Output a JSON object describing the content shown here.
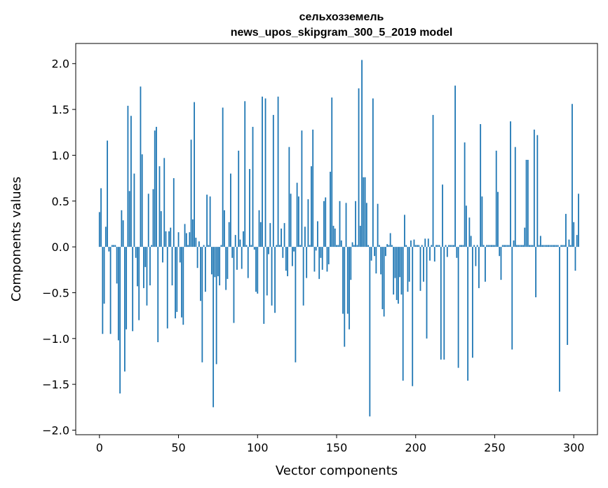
{
  "chart_data": {
    "type": "bar",
    "title": "сельхозземель",
    "subtitle": "news_upos_skipgram_300_5_2019 model",
    "xlabel": "Vector components",
    "ylabel": "Components values",
    "xlim": [
      -15,
      315
    ],
    "ylim": [
      -2.05,
      2.22
    ],
    "xticks": [
      0,
      50,
      100,
      150,
      200,
      250,
      300
    ],
    "xtick_labels": [
      "0",
      "50",
      "100",
      "150",
      "200",
      "250",
      "300"
    ],
    "yticks": [
      -2.0,
      -1.5,
      -1.0,
      -0.5,
      0.0,
      0.5,
      1.0,
      1.5,
      2.0
    ],
    "ytick_labels": [
      "−2.0",
      "−1.5",
      "−1.0",
      "−0.5",
      "0.0",
      "0.5",
      "1.0",
      "1.5",
      "2.0"
    ],
    "grid": false,
    "bar_color": "#1f77b4",
    "series": [
      {
        "values": [
          0.38,
          0.64,
          -0.95,
          -0.62,
          0.22,
          1.16,
          -0.05,
          -0.95,
          0.02,
          0.02,
          0.02,
          -0.4,
          -1.02,
          -1.6,
          0.4,
          0.29,
          -1.36,
          -0.9,
          1.54,
          0.61,
          1.43,
          -0.92,
          0.8,
          -0.12,
          -0.43,
          -0.8,
          1.75,
          1.01,
          -0.45,
          -0.22,
          -0.64,
          0.58,
          -0.42,
          0.02,
          0.63,
          1.27,
          1.31,
          -1.04,
          0.88,
          0.39,
          -0.17,
          0.97,
          0.17,
          -0.89,
          0.17,
          0.21,
          -0.42,
          0.75,
          -0.78,
          -0.71,
          0.16,
          -0.17,
          -0.77,
          -0.85,
          0.25,
          0.15,
          0.02,
          0.16,
          1.17,
          0.3,
          1.58,
          0.1,
          -0.23,
          0.06,
          -0.59,
          -1.26,
          0.02,
          -0.49,
          0.57,
          0.02,
          0.55,
          -0.3,
          -1.75,
          -0.33,
          -1.28,
          -0.32,
          -0.42,
          0.02,
          1.52,
          0.4,
          -0.47,
          -0.35,
          0.27,
          0.8,
          -0.12,
          -0.83,
          0.13,
          -0.25,
          1.05,
          0.08,
          -0.24,
          0.17,
          1.59,
          0.02,
          -0.34,
          0.85,
          0.02,
          1.31,
          -0.03,
          -0.49,
          -0.51,
          0.4,
          0.27,
          1.64,
          -0.84,
          1.62,
          -0.53,
          -0.08,
          0.26,
          -0.64,
          1.44,
          -0.72,
          0.02,
          1.64,
          0.02,
          0.2,
          -0.12,
          0.26,
          -0.26,
          -0.32,
          1.09,
          0.58,
          -0.21,
          -0.05,
          -1.26,
          0.7,
          0.55,
          0.02,
          1.27,
          -0.64,
          0.22,
          -0.34,
          0.52,
          0.02,
          0.88,
          1.28,
          -0.27,
          -0.04,
          0.28,
          -0.35,
          -0.12,
          -0.25,
          0.5,
          0.54,
          -0.27,
          -0.19,
          0.82,
          1.63,
          0.23,
          0.2,
          0.02,
          0.02,
          0.5,
          0.07,
          -0.73,
          -1.09,
          0.48,
          -0.73,
          -0.9,
          -0.36,
          0.05,
          0.02,
          0.5,
          0.02,
          1.73,
          0.23,
          2.04,
          0.76,
          0.76,
          0.48,
          0.02,
          -1.85,
          -0.15,
          1.62,
          -0.1,
          -0.29,
          0.47,
          0.02,
          -0.3,
          -0.68,
          -0.76,
          -0.1,
          0.03,
          0.02,
          0.15,
          0.02,
          -0.52,
          -0.34,
          -0.58,
          -0.62,
          -0.33,
          -0.52,
          -1.46,
          0.35,
          0.02,
          -0.49,
          -0.38,
          0.07,
          -1.52,
          0.08,
          0.02,
          0.02,
          0.02,
          -0.48,
          0.02,
          -0.38,
          0.09,
          -1.0,
          0.09,
          -0.15,
          0.02,
          1.44,
          -0.16,
          0.02,
          0.02,
          0.02,
          -1.23,
          0.68,
          -1.23,
          0.02,
          -0.11,
          0.02,
          0.02,
          0.02,
          0.02,
          1.76,
          -0.12,
          -1.32,
          0.02,
          0.02,
          0.02,
          1.14,
          0.45,
          -1.46,
          0.32,
          0.12,
          -1.21,
          0.02,
          -0.21,
          0.02,
          -0.45,
          1.34,
          0.55,
          0.02,
          -0.38,
          0.02,
          0.02,
          0.02,
          0.02,
          0.02,
          0.02,
          1.05,
          0.6,
          -0.1,
          -0.36,
          0.02,
          0.02,
          0.02,
          0.02,
          0.02,
          1.37,
          -1.12,
          0.07,
          1.09,
          0.02,
          0.02,
          0.02,
          0.02,
          0.02,
          0.21,
          0.95,
          0.95,
          0.02,
          0.02,
          0.02,
          1.28,
          -0.55,
          1.22,
          0.02,
          0.12,
          0.02,
          0.02,
          0.02,
          0.02,
          0.02,
          0.02,
          0.02,
          0.02,
          0.02,
          0.02,
          0.02,
          -1.58,
          0.02,
          0.02,
          0.02,
          0.36,
          -1.07,
          0.08,
          0.02,
          1.56,
          0.27,
          -0.26,
          0.13,
          0.58
        ]
      }
    ]
  }
}
